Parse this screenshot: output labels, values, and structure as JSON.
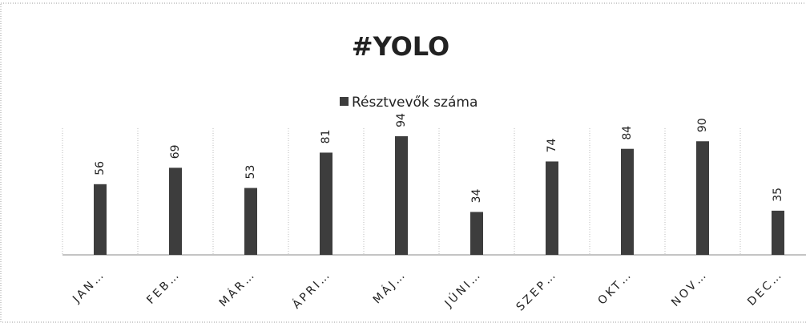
{
  "chart_data": {
    "type": "bar",
    "title": "#YOLO",
    "categories": [
      "JAN…",
      "FEB…",
      "MÁR…",
      "ÁPRI…",
      "MÁJ…",
      "JÚNI…",
      "SZEP…",
      "OKT…",
      "NOV…",
      "DEC…"
    ],
    "series": [
      {
        "name": "Résztvevők száma",
        "color": "#3d3d3d",
        "values": [
          56,
          69,
          53,
          81,
          94,
          34,
          74,
          84,
          90,
          35
        ]
      }
    ],
    "ylim": [
      0,
      100
    ],
    "grid": true,
    "legend": "top"
  }
}
